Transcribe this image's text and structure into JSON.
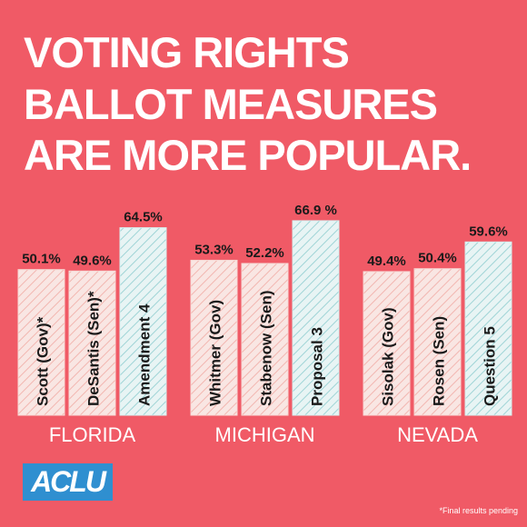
{
  "title": {
    "line1": "VOTING RIGHTS",
    "line2": "BALLOT MEASURES",
    "line3": "ARE MORE POPULAR."
  },
  "colors": {
    "background": "#f05a66",
    "candidate_bar": "#f9e6e3",
    "candidate_hatch": "#f2b6b0",
    "measure_bar": "#e8f4f4",
    "measure_hatch": "#9fd4d6",
    "text_dark": "#1a1a1a",
    "white": "#ffffff",
    "logo": "#2f8fd0"
  },
  "chart_data": {
    "type": "bar",
    "groups": [
      {
        "name": "FLORIDA",
        "bars": [
          {
            "label": "Scott (Gov)*",
            "value": 50.1,
            "value_label": "50.1%",
            "kind": "candidate"
          },
          {
            "label": "DeSantis (Sen)*",
            "value": 49.6,
            "value_label": "49.6%",
            "kind": "candidate"
          },
          {
            "label": "Amendment 4",
            "value": 64.5,
            "value_label": "64.5%",
            "kind": "measure"
          }
        ]
      },
      {
        "name": "MICHIGAN",
        "bars": [
          {
            "label": "Whitmer (Gov)",
            "value": 53.3,
            "value_label": "53.3%",
            "kind": "candidate"
          },
          {
            "label": "Stabenow (Sen)",
            "value": 52.2,
            "value_label": "52.2%",
            "kind": "candidate"
          },
          {
            "label": "Proposal 3",
            "value": 66.9,
            "value_label": "66.9 %",
            "kind": "measure"
          }
        ]
      },
      {
        "name": "NEVADA",
        "bars": [
          {
            "label": "Sisolak (Gov)",
            "value": 49.4,
            "value_label": "49.4%",
            "kind": "candidate"
          },
          {
            "label": "Rosen (Sen)",
            "value": 50.4,
            "value_label": "50.4%",
            "kind": "candidate"
          },
          {
            "label": "Question 5",
            "value": 59.6,
            "value_label": "59.6%",
            "kind": "measure"
          }
        ]
      }
    ]
  },
  "logo": {
    "text": "ACLU"
  },
  "footnote": "*Final results pending"
}
